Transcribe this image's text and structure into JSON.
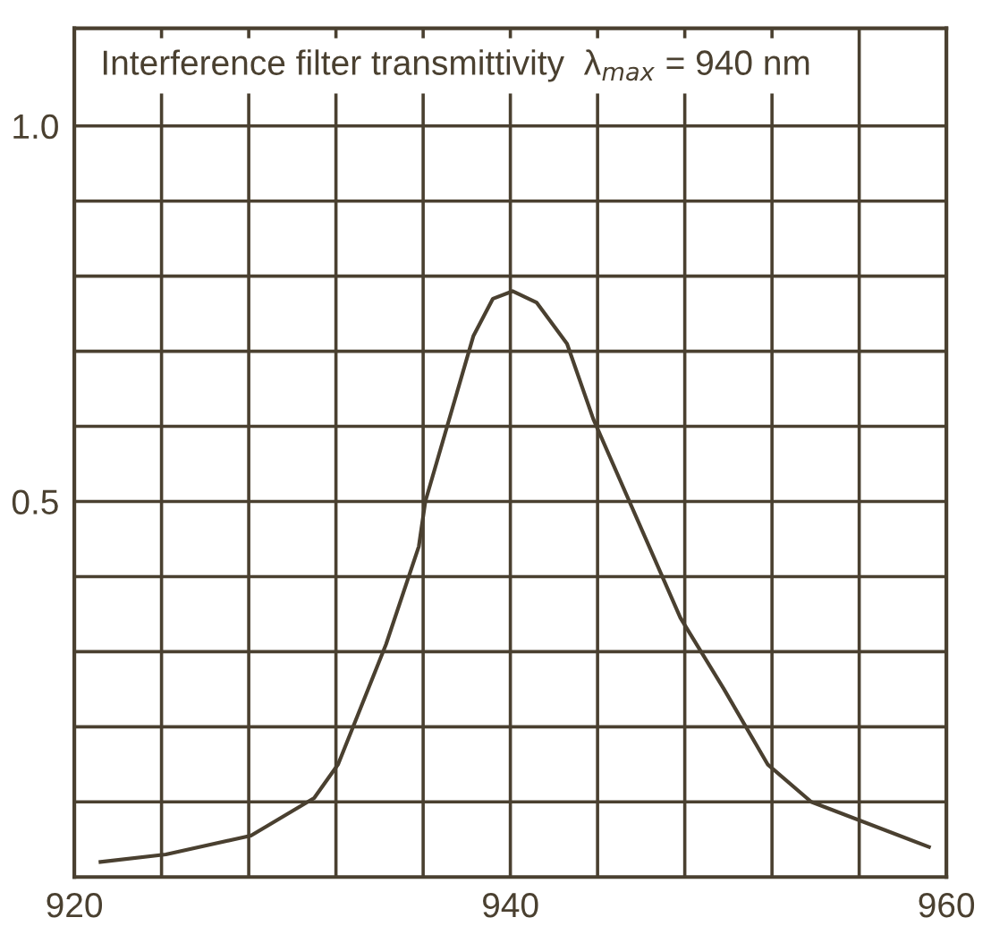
{
  "chart_data": {
    "type": "line",
    "title": "Interference filter transmittivity  λ$_{max}$ = 940 nm",
    "x": [
      921.2,
      924.2,
      928.1,
      931.0,
      932.1,
      934.3,
      935.8,
      936.1,
      938.3,
      939.2,
      940.1,
      941.2,
      942.6,
      943.8,
      947.8,
      949.8,
      951.8,
      953.8,
      959.2
    ],
    "series": [
      {
        "color": "#4a4030",
        "values": [
          0.02,
          0.03,
          0.055,
          0.105,
          0.15,
          0.31,
          0.44,
          0.5,
          0.72,
          0.77,
          0.78,
          0.765,
          0.71,
          0.61,
          0.345,
          0.25,
          0.15,
          0.1,
          0.04
        ]
      }
    ],
    "xlim": [
      920,
      960
    ],
    "xticks": [
      920,
      {
        "value": 924,
        "label": null
      },
      {
        "value": 928,
        "label": null
      },
      {
        "value": 932,
        "label": null
      },
      {
        "value": 936,
        "label": null
      },
      940,
      {
        "value": 944,
        "label": null
      },
      {
        "value": 948,
        "label": null
      },
      {
        "value": 952,
        "label": null
      },
      {
        "value": 956,
        "label": null
      },
      960
    ],
    "ylim": [
      0,
      1.13
    ],
    "yticks": [
      {
        "value": 0.1,
        "label": null
      },
      {
        "value": 0.2,
        "label": null
      },
      {
        "value": 0.3,
        "label": null
      },
      {
        "value": 0.4,
        "label": null
      },
      {
        "value": 0.5,
        "label": "0.5"
      },
      {
        "value": 0.6,
        "label": null
      },
      {
        "value": 0.7,
        "label": null
      },
      {
        "value": 0.8,
        "label": null
      },
      {
        "value": 0.9,
        "label": null
      },
      {
        "value": 1.0,
        "label": "1.0"
      }
    ],
    "grid": true,
    "marker": "none",
    "line_style": "solid",
    "legend": false
  }
}
